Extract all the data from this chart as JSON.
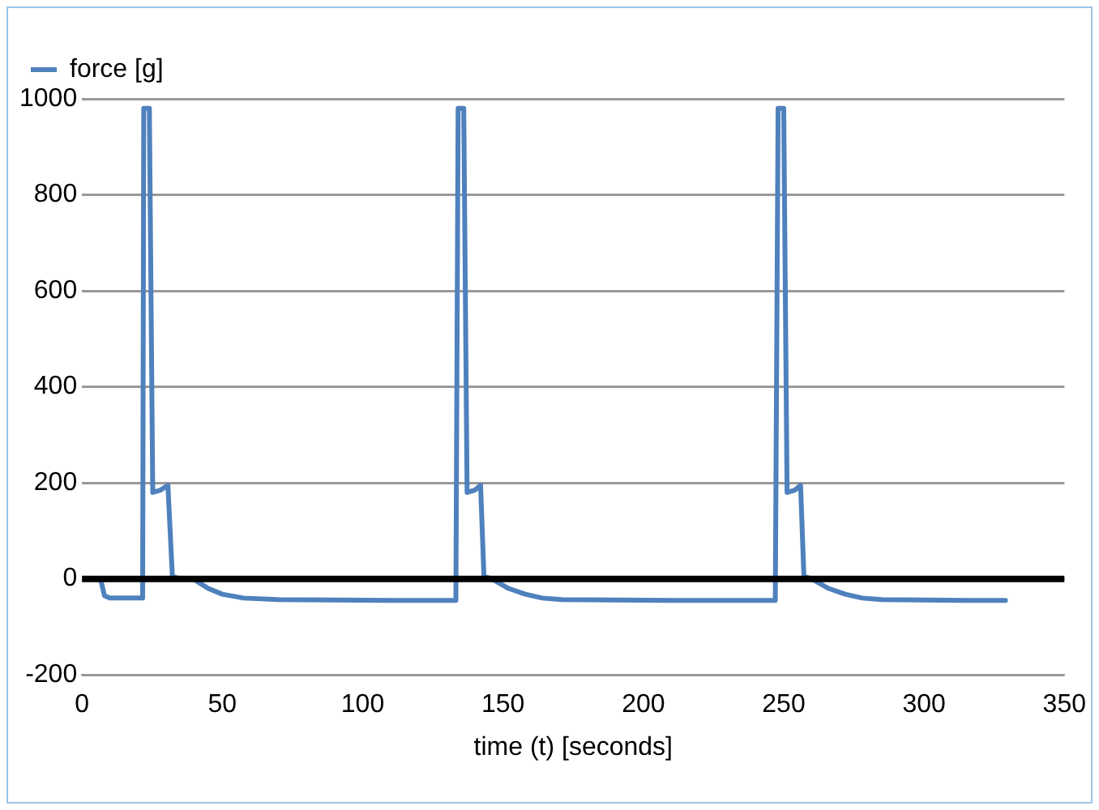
{
  "chart_data": {
    "type": "line",
    "xlabel": "time (t) [seconds]",
    "xlim": [
      0,
      350
    ],
    "xticks": [
      0,
      50,
      100,
      150,
      200,
      250,
      300,
      350
    ],
    "ylim": [
      -200,
      1000
    ],
    "yticks": [
      -200,
      0,
      200,
      400,
      600,
      800,
      1000
    ],
    "grid": "y",
    "legend": "top left",
    "marker": "none",
    "line_style": "solid",
    "ref_lines": [
      {
        "axis": "y",
        "value": 0,
        "color": "#000000"
      }
    ],
    "series": [
      {
        "name": "force [g]",
        "color": "#4f81bd",
        "x": [
          6.6,
          8,
          10,
          15,
          21,
          21.6,
          22,
          24,
          25.2,
          28,
          30.6,
          32.2,
          35,
          39.6,
          45,
          50,
          57.6,
          70,
          90,
          110,
          133,
          133.2,
          134,
          136,
          137.2,
          140,
          142,
          143.2,
          146,
          152,
          158,
          164,
          171,
          190,
          210,
          230,
          246.8,
          247,
          248,
          250,
          251.2,
          254,
          256,
          257.2,
          260,
          266,
          272,
          278,
          285,
          300,
          315,
          329
        ],
        "values": [
          0,
          -35,
          -40,
          -40,
          -40,
          -40,
          980,
          980,
          180,
          185,
          195,
          5,
          0,
          0,
          -20,
          -32,
          -40,
          -43,
          -44,
          -45,
          -45,
          -45,
          980,
          980,
          180,
          185,
          195,
          5,
          0,
          -20,
          -32,
          -40,
          -43,
          -44,
          -45,
          -45,
          -45,
          -45,
          980,
          980,
          180,
          185,
          195,
          5,
          0,
          -20,
          -32,
          -40,
          -43,
          -44,
          -45,
          -45
        ]
      }
    ]
  }
}
